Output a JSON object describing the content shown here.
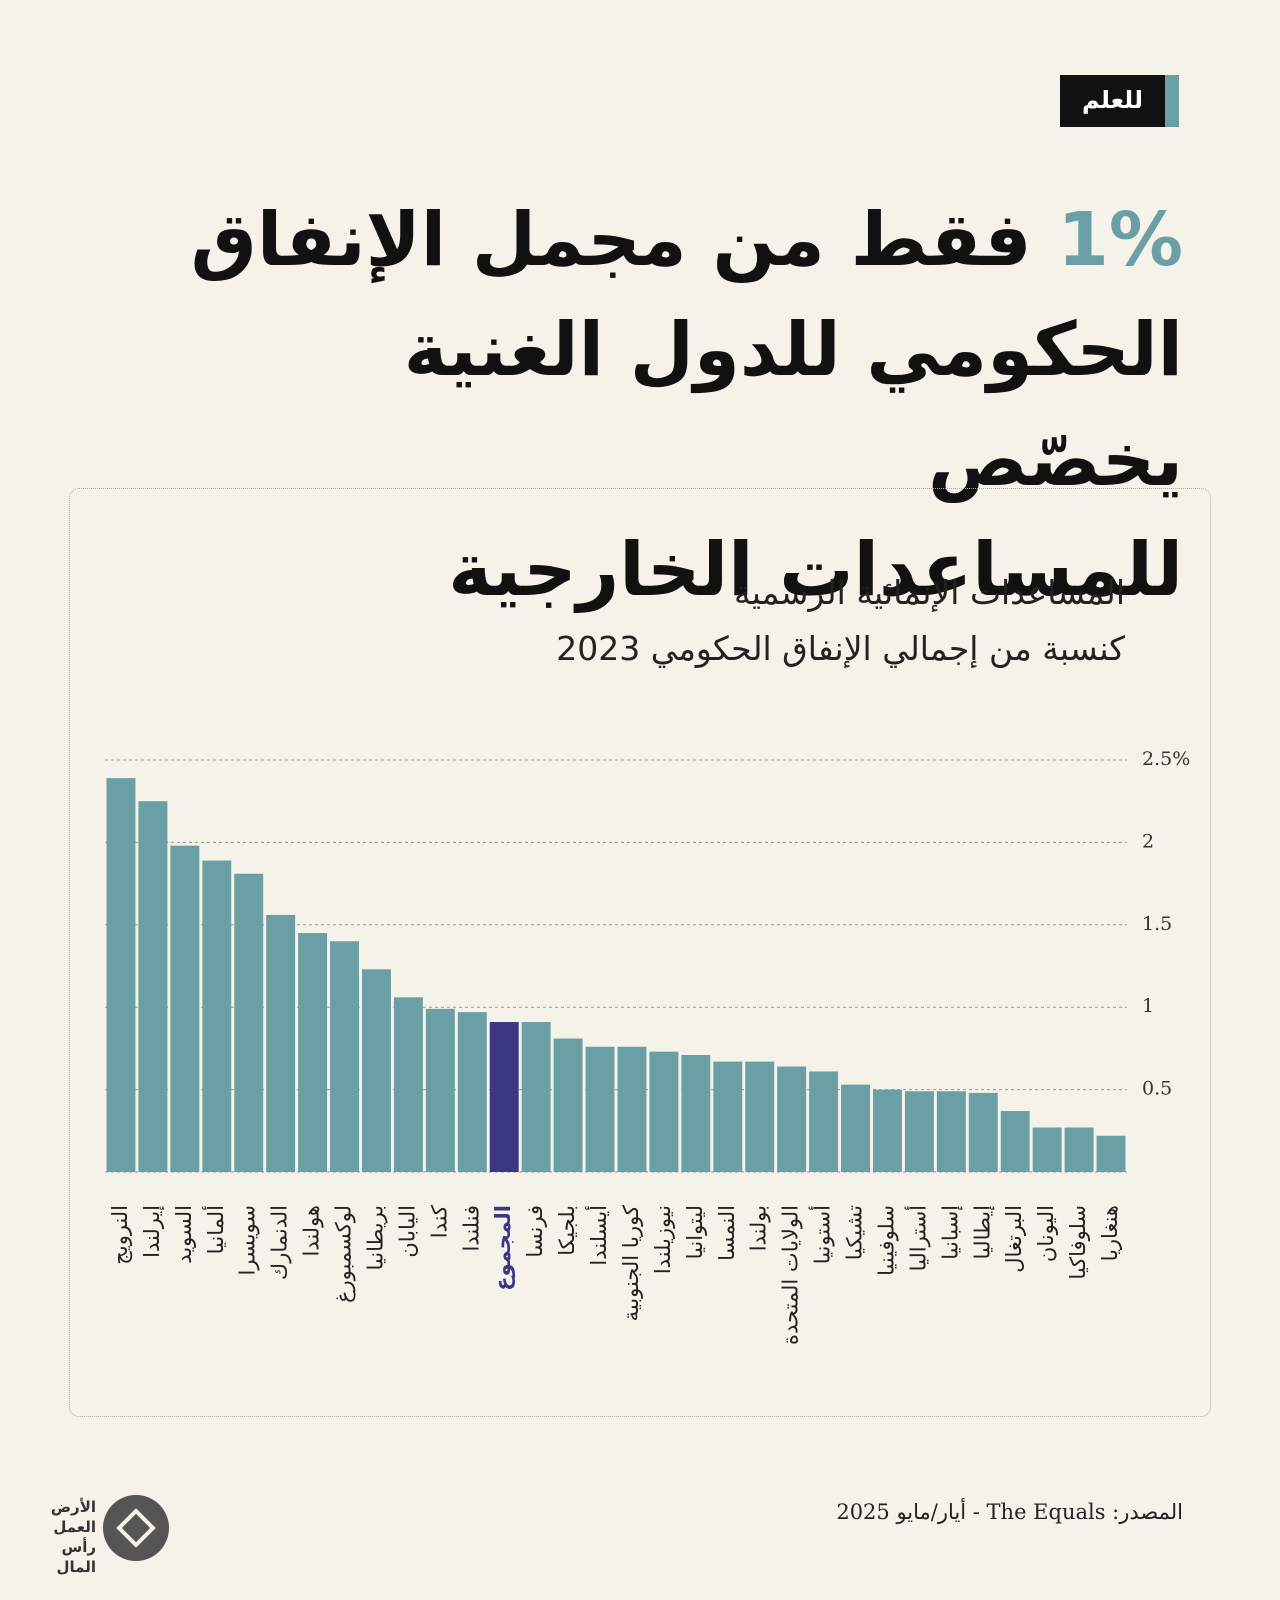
{
  "tag": "للعلم",
  "headline": {
    "highlight": "1%",
    "lines": [
      "فقط من مجمل الإنفاق",
      "الحكومي للدول الغنية يخصّص",
      "للمساعدات الخارجية"
    ]
  },
  "chart_data": {
    "type": "bar",
    "title": "المساعدات الإنمائية الرسمية",
    "subtitle": "كنسبة من إجمالي الإنفاق الحكومي 2023",
    "categories": [
      "النرويج",
      "إيرلندا",
      "السويد",
      "ألمانيا",
      "سويسرا",
      "الدنمارك",
      "هولندا",
      "لوكسمبورغ",
      "بريطانيا",
      "اليابان",
      "كندا",
      "فنلندا",
      "المجموع",
      "فرنسا",
      "بلجيكا",
      "أيسلندا",
      "كوريا الجنوبية",
      "نيوزيلندا",
      "ليتوانيا",
      "النمسا",
      "بولندا",
      "الولايات المتحدة",
      "أستونيا",
      "تشيكيا",
      "سلوفينيا",
      "أستراليا",
      "إسبانيا",
      "إيطاليا",
      "البرتغال",
      "اليونان",
      "سلوفاكيا",
      "هنغاريا"
    ],
    "values": [
      2.39,
      2.25,
      1.98,
      1.89,
      1.81,
      1.56,
      1.45,
      1.4,
      1.23,
      1.06,
      0.99,
      0.97,
      0.91,
      0.91,
      0.81,
      0.76,
      0.76,
      0.73,
      0.71,
      0.67,
      0.67,
      0.64,
      0.61,
      0.53,
      0.5,
      0.49,
      0.49,
      0.48,
      0.37,
      0.27,
      0.27,
      0.22
    ],
    "color": "#6b9fa6",
    "highlight": "المجموع",
    "highlight_color": "#3b3785",
    "ylim": [
      0,
      2.5
    ],
    "yticks": [
      0.5,
      1,
      1.5,
      2,
      {
        "value": 2.5,
        "label": "2.5%"
      }
    ],
    "grid": true
  },
  "source": "المصدر: The Equals - أيار/مايو 2025",
  "logo": [
    "الأرض",
    "العمل",
    "رأس المال"
  ]
}
